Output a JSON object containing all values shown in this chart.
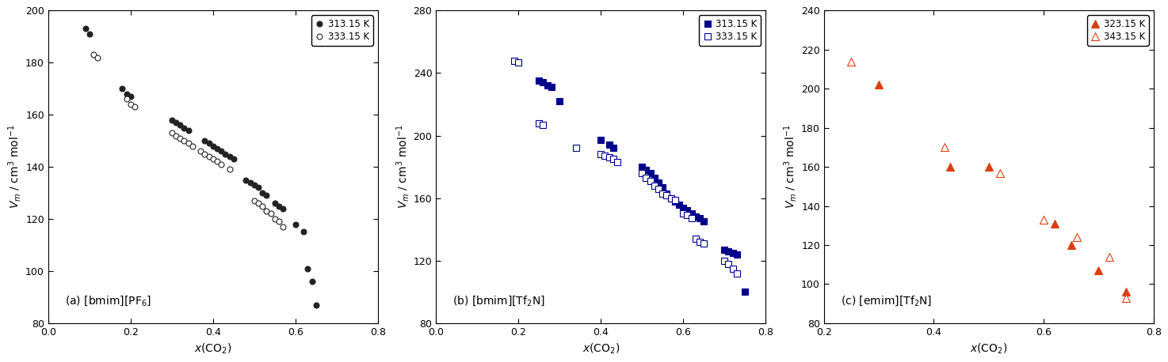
{
  "panel_a": {
    "label": "(a) [bmim][PF$_6$]",
    "xlabel": "$x$(CO$_2$)",
    "ylabel": "$V_m$ / cm$^3$ mol$^{-1}$",
    "ylim": [
      80,
      200
    ],
    "yticks": [
      80,
      100,
      120,
      140,
      160,
      180,
      200
    ],
    "xlim": [
      0,
      0.8
    ],
    "xticks": [
      0,
      0.2,
      0.4,
      0.6,
      0.8
    ],
    "color": "#222222",
    "legend_labels": [
      "313.15 K",
      "333.15 K"
    ],
    "s1_x": [
      0.09,
      0.1,
      0.18,
      0.19,
      0.2,
      0.3,
      0.31,
      0.32,
      0.33,
      0.34,
      0.38,
      0.39,
      0.4,
      0.41,
      0.42,
      0.43,
      0.44,
      0.45,
      0.48,
      0.49,
      0.5,
      0.51,
      0.52,
      0.53,
      0.55,
      0.56,
      0.57,
      0.6,
      0.62,
      0.63,
      0.64,
      0.65
    ],
    "s1_y": [
      193,
      191,
      170,
      168,
      167,
      158,
      157,
      156,
      155,
      154,
      150,
      149,
      148,
      147,
      146,
      145,
      144,
      143,
      135,
      134,
      133,
      132,
      130,
      129,
      126,
      125,
      124,
      118,
      115,
      101,
      96,
      87
    ],
    "s2_x": [
      0.11,
      0.12,
      0.19,
      0.2,
      0.21,
      0.3,
      0.31,
      0.32,
      0.33,
      0.34,
      0.35,
      0.37,
      0.38,
      0.39,
      0.4,
      0.41,
      0.42,
      0.44,
      0.5,
      0.51,
      0.52,
      0.53,
      0.54,
      0.55,
      0.56,
      0.57
    ],
    "s2_y": [
      183,
      182,
      166,
      164,
      163,
      153,
      152,
      151,
      150,
      149,
      148,
      146,
      145,
      144,
      143,
      142,
      141,
      139,
      127,
      126,
      125,
      123,
      122,
      120,
      119,
      117
    ]
  },
  "panel_b": {
    "label": "(b) [bmim][Tf$_2$N]",
    "xlabel": "$x$(CO$_2$)",
    "ylabel": "$V_m$ / cm$^3$ mol$^{-1}$",
    "ylim": [
      80,
      280
    ],
    "yticks": [
      80,
      120,
      160,
      200,
      240,
      280
    ],
    "xlim": [
      0,
      0.8
    ],
    "xticks": [
      0,
      0.2,
      0.4,
      0.6,
      0.8
    ],
    "color": "#00008B",
    "legend_labels": [
      "313.15 K",
      "333.15 K"
    ],
    "s1_x": [
      0.25,
      0.26,
      0.27,
      0.28,
      0.3,
      0.4,
      0.42,
      0.43,
      0.5,
      0.51,
      0.52,
      0.53,
      0.54,
      0.55,
      0.56,
      0.57,
      0.58,
      0.59,
      0.6,
      0.61,
      0.62,
      0.63,
      0.64,
      0.65,
      0.7,
      0.71,
      0.72,
      0.73,
      0.75
    ],
    "s1_y": [
      235,
      234,
      232,
      231,
      222,
      197,
      194,
      192,
      180,
      178,
      176,
      173,
      170,
      167,
      163,
      160,
      158,
      156,
      154,
      152,
      150,
      148,
      147,
      145,
      127,
      126,
      125,
      124,
      100
    ],
    "s2_x": [
      0.19,
      0.2,
      0.25,
      0.26,
      0.34,
      0.4,
      0.41,
      0.42,
      0.43,
      0.44,
      0.5,
      0.51,
      0.52,
      0.53,
      0.54,
      0.55,
      0.56,
      0.57,
      0.58,
      0.6,
      0.61,
      0.62,
      0.63,
      0.64,
      0.65,
      0.7,
      0.71,
      0.72,
      0.73
    ],
    "s2_y": [
      248,
      247,
      208,
      207,
      192,
      188,
      187,
      186,
      185,
      183,
      176,
      173,
      171,
      168,
      166,
      163,
      162,
      160,
      159,
      150,
      149,
      147,
      134,
      132,
      131,
      120,
      118,
      115,
      112
    ]
  },
  "panel_c": {
    "label": "(c) [emim][Tf$_2$N]",
    "xlabel": "$x$(CO$_2$)",
    "ylabel": "$V_m$ / cm$^3$ mol$^{-1}$",
    "ylim": [
      80,
      240
    ],
    "yticks": [
      80,
      100,
      120,
      140,
      160,
      180,
      200,
      220,
      240
    ],
    "xlim": [
      0.2,
      0.8
    ],
    "xticks": [
      0.2,
      0.4,
      0.6,
      0.8
    ],
    "color": "#D94010",
    "legend_labels": [
      "323.15 K",
      "343.15 K"
    ],
    "s1_x": [
      0.3,
      0.43,
      0.5,
      0.62,
      0.65,
      0.7,
      0.75
    ],
    "s1_y": [
      202,
      160,
      160,
      131,
      120,
      107,
      96
    ],
    "s2_x": [
      0.25,
      0.42,
      0.52,
      0.6,
      0.66,
      0.72,
      0.75
    ],
    "s2_y": [
      214,
      170,
      157,
      133,
      124,
      114,
      93
    ]
  }
}
